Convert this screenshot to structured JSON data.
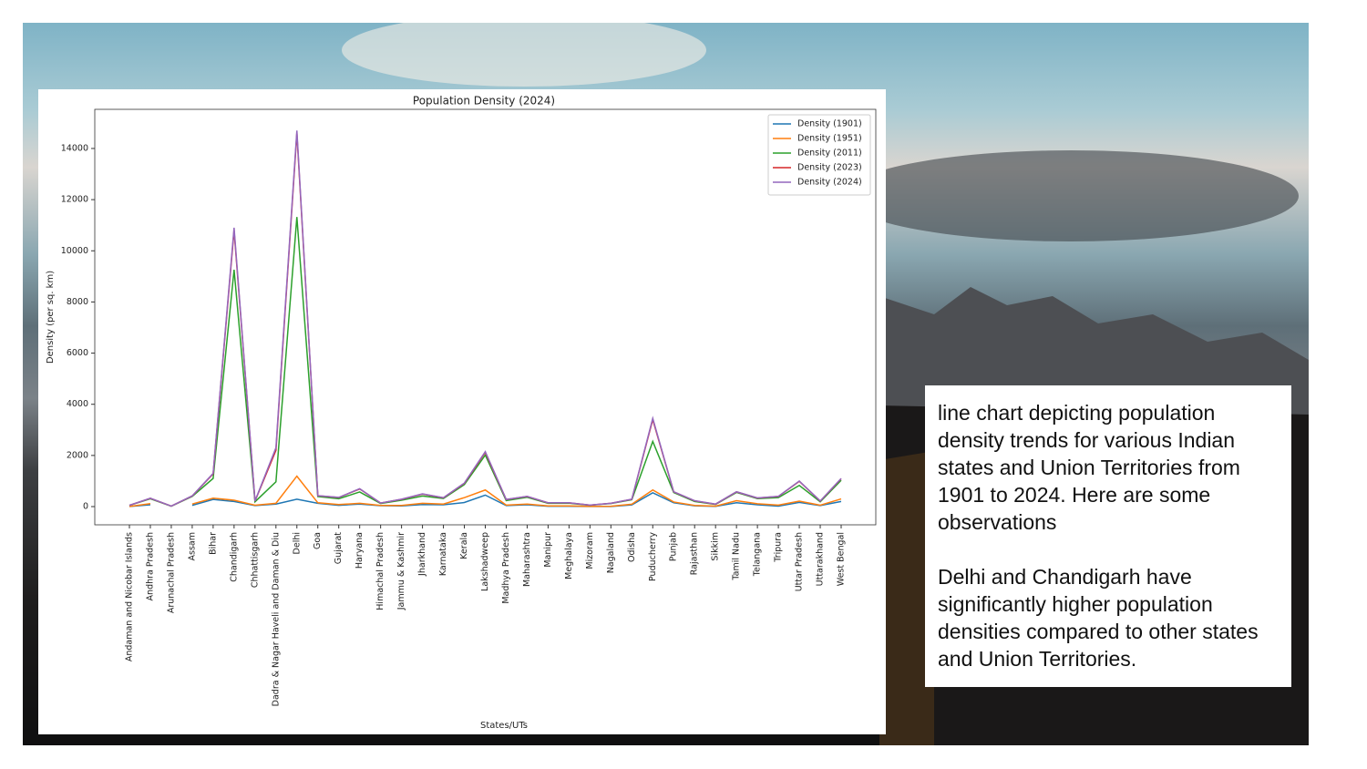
{
  "chart_data": {
    "type": "line",
    "title": "Population Density (2024)",
    "x_label": "States/UTs",
    "y_label": "Density (per sq. km)",
    "categories": [
      "Andaman and Nicobar Islands",
      "Andhra Pradesh",
      "Arunachal Pradesh",
      "Assam",
      "Bihar",
      "Chandigarh",
      "Chhattisgarh",
      "Dadra & Nagar Haveli and Daman & Diu",
      "Delhi",
      "Goa",
      "Gujarat",
      "Haryana",
      "Himachal Pradesh",
      "Jammu & Kashmir",
      "Jharkhand",
      "Karnataka",
      "Kerala",
      "Lakshadweep",
      "Madhya Pradesh",
      "Maharashtra",
      "Manipur",
      "Meghalaya",
      "Mizoram",
      "Nagaland",
      "Odisha",
      "Puducherry",
      "Punjab",
      "Rajasthan",
      "Sikkim",
      "Tamil Nadu",
      "Telangana",
      "Tripura",
      "Uttar Pradesh",
      "Uttarakhand",
      "West Bengal"
    ],
    "series": [
      {
        "name": "Density (1901)",
        "color": "#1f77b4",
        "values": [
          3,
          70,
          null,
          50,
          280,
          200,
          40,
          100,
          290,
          130,
          50,
          100,
          35,
          25,
          80,
          70,
          160,
          450,
          40,
          70,
          13,
          15,
          4,
          6,
          65,
          540,
          150,
          30,
          9,
          150,
          70,
          17,
          165,
          40,
          200
        ]
      },
      {
        "name": "Density (1951)",
        "color": "#ff7f0e",
        "values": [
          4,
          115,
          null,
          100,
          330,
          250,
          55,
          130,
          1190,
          150,
          80,
          130,
          43,
          45,
          130,
          100,
          350,
          650,
          60,
          100,
          26,
          28,
          10,
          13,
          94,
          650,
          180,
          47,
          19,
          230,
          110,
          60,
          215,
          55,
          300
        ]
      },
      {
        "name": "Density (2011)",
        "color": "#2ca02c",
        "values": [
          46,
          308,
          17,
          398,
          1102,
          9258,
          189,
          970,
          11320,
          394,
          308,
          573,
          123,
          250,
          414,
          319,
          860,
          2013,
          236,
          365,
          128,
          132,
          52,
          119,
          270,
          2547,
          551,
          200,
          86,
          555,
          312,
          350,
          829,
          189,
          1028
        ]
      },
      {
        "name": "Density (2023)",
        "color": "#d62728",
        "values": [
          49,
          325,
          19,
          415,
          1280,
          10800,
          215,
          2200,
          14600,
          425,
          355,
          690,
          138,
          285,
          490,
          345,
          910,
          2120,
          275,
          395,
          148,
          147,
          58,
          128,
          285,
          3400,
          575,
          225,
          96,
          575,
          335,
          395,
          990,
          215,
          1090
        ]
      },
      {
        "name": "Density (2024)",
        "color": "#9467bd",
        "values": [
          50,
          330,
          20,
          420,
          1300,
          10900,
          220,
          2300,
          14700,
          430,
          360,
          700,
          140,
          290,
          500,
          350,
          920,
          2150,
          280,
          400,
          150,
          150,
          60,
          130,
          290,
          3450,
          580,
          230,
          100,
          580,
          340,
          400,
          1000,
          220,
          1100
        ]
      }
    ],
    "ylim": [
      -712,
      15530
    ],
    "yticks": [
      0,
      2000,
      4000,
      6000,
      8000,
      10000,
      12000,
      14000
    ],
    "grid": false,
    "legend": "upper right"
  },
  "text_box": {
    "paragraphs": [
      "line chart depicting population density trends for various Indian states and Union Territories from 1901 to 2024. Here are some observations",
      "Delhi and Chandigarh have significantly higher population densities compared to other states and Union Territories."
    ]
  }
}
